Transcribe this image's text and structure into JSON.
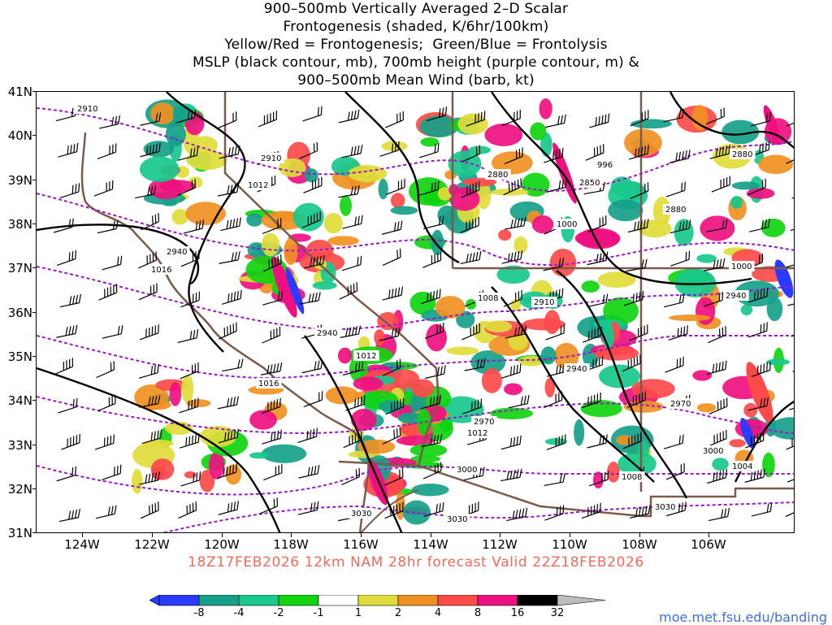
{
  "title": {
    "lines": [
      "900–500mb Vertically Averaged 2–D Scalar",
      "Frontogenesis (shaded, K/6hr/100km)",
      "Yellow/Red = Frontogenesis;  Green/Blue = Frontolysis",
      "MSLP (black contour, mb), 700mb height (purple contour, m) &",
      "900–500mb Mean Wind (barb, kt)"
    ]
  },
  "map": {
    "lat_labels": [
      "41N",
      "40N",
      "39N",
      "38N",
      "37N",
      "36N",
      "35N",
      "34N",
      "33N",
      "32N",
      "31N"
    ],
    "lon_labels": [
      "124W",
      "122W",
      "120W",
      "118W",
      "116W",
      "114W",
      "112W",
      "110W",
      "108W",
      "106W"
    ],
    "colors": {
      "border": "#7a5a4a",
      "mslp": "#000000",
      "height": "#9a18c8",
      "barb": "#000000"
    },
    "height_contour_labels": [
      "2910",
      "2910",
      "2880",
      "2850",
      "2880",
      "2880",
      "2940",
      "2910",
      "2940",
      "2940",
      "2940",
      "2970",
      "2970",
      "3000",
      "3000",
      "3030",
      "3030",
      "3030"
    ],
    "mslp_contour_labels": [
      "1012",
      "996",
      "1000",
      "1016",
      "1008",
      "1012",
      "1016",
      "1012",
      "1008",
      "1000",
      "1004"
    ]
  },
  "run_info": "18Z17FEB2026 12km NAM 28hr forecast Valid 22Z18FEB2026",
  "colorbar": {
    "labels": [
      "-8",
      "-4",
      "-2",
      "-1",
      "1",
      "2",
      "4",
      "8",
      "16",
      "32"
    ],
    "colors": [
      "#2a3aff",
      "#16a08a",
      "#18c88c",
      "#10d410",
      "#ffffff",
      "#e0dc3c",
      "#f09022",
      "#ff4a4a",
      "#ee1080",
      "#000000",
      "#bdbdbd"
    ]
  },
  "credit": "moe.met.fsu.edu/banding"
}
